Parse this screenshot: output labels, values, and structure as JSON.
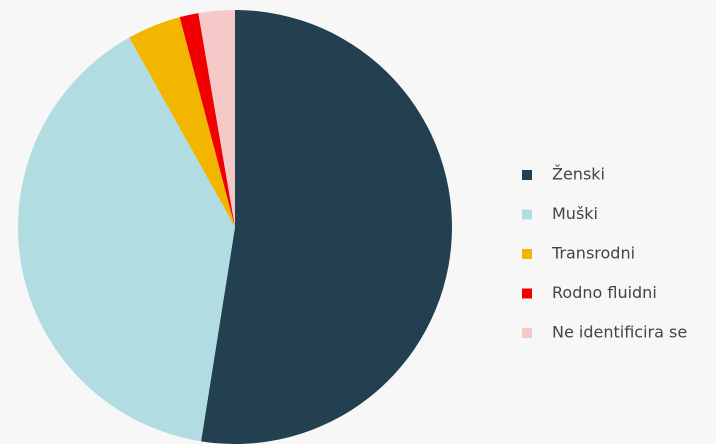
{
  "chart_data": {
    "type": "pie",
    "categories": [
      "Ženski",
      "Muški",
      "Transrodni",
      "Rodno fluidni",
      "Ne identificira se"
    ],
    "values": [
      52.5,
      39.4,
      4,
      1.4,
      2.7
    ],
    "colors": [
      "#22404f",
      "#b1dde2",
      "#f2b600",
      "#f00000",
      "#f7c8c8"
    ],
    "legend": "right"
  }
}
